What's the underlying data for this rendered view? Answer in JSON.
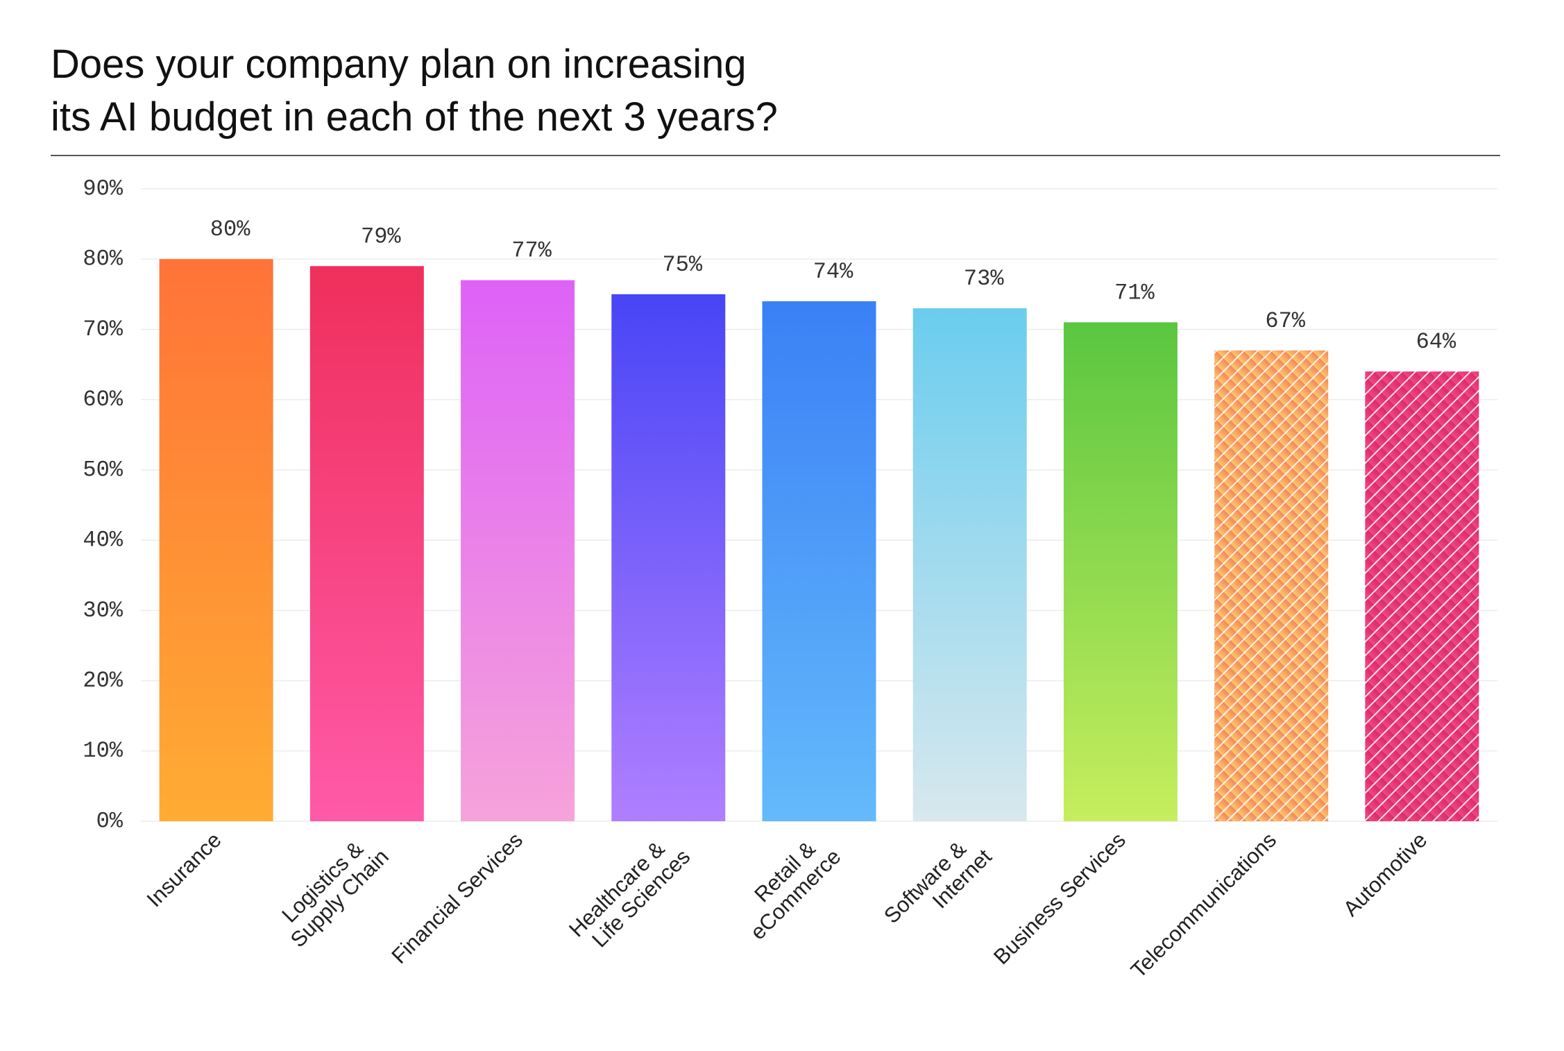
{
  "chart_data": {
    "type": "bar",
    "title": [
      "Does your company plan on increasing",
      "its AI budget in each of the next 3 years?"
    ],
    "categories": [
      [
        "Insurance"
      ],
      [
        "Logistics &",
        "Supply Chain"
      ],
      [
        "Financial Services"
      ],
      [
        "Healthcare &",
        "Life Sciences"
      ],
      [
        "Retail &",
        "eCommerce"
      ],
      [
        "Software &",
        "Internet"
      ],
      [
        "Business Services"
      ],
      [
        "Telecommunications"
      ],
      [
        "Automotive"
      ]
    ],
    "values": [
      80,
      79,
      77,
      75,
      74,
      73,
      71,
      67,
      64
    ],
    "value_labels": [
      "80%",
      "79%",
      "77%",
      "75%",
      "74%",
      "73%",
      "71%",
      "67%",
      "64%"
    ],
    "colors": [
      [
        "#ff7338",
        "#ffac33"
      ],
      [
        "#ef2f5c",
        "#ff5aa8"
      ],
      [
        "#de62f7",
        "#f6a3da"
      ],
      [
        "#4845f6",
        "#b07fff"
      ],
      [
        "#3a80f6",
        "#64bafb"
      ],
      [
        "#6acdee",
        "#d8e8ee"
      ],
      [
        "#5ac640",
        "#c6ee5e"
      ],
      [
        "#f5855c",
        "#fdc96c"
      ],
      [
        "#dd2a62",
        "#f0478a"
      ]
    ],
    "hatched": [
      false,
      false,
      false,
      false,
      false,
      false,
      false,
      true,
      true
    ],
    "ylim": [
      0,
      90
    ],
    "yticks": [
      {
        "value": 0,
        "label": "0%"
      },
      {
        "value": 10,
        "label": "10%"
      },
      {
        "value": 20,
        "label": "20%"
      },
      {
        "value": 30,
        "label": "30%"
      },
      {
        "value": 40,
        "label": "40%"
      },
      {
        "value": 50,
        "label": "50%"
      },
      {
        "value": 60,
        "label": "60%"
      },
      {
        "value": 70,
        "label": "70%"
      },
      {
        "value": 80,
        "label": "80%"
      },
      {
        "value": 90,
        "label": "90%"
      }
    ],
    "grid": true
  }
}
